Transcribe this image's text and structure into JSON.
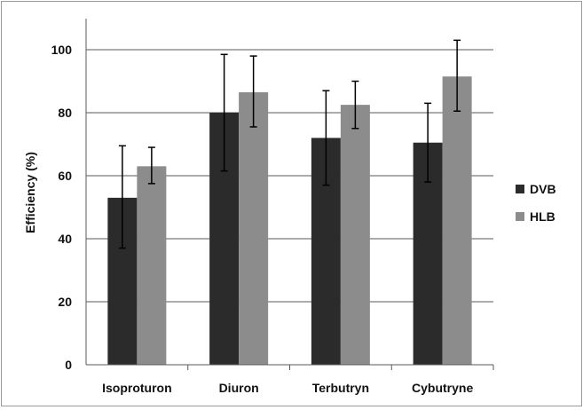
{
  "chart_data": {
    "type": "bar",
    "title": "",
    "xlabel": "",
    "ylabel": "Efficiency (%)",
    "categories": [
      "Isoproturon",
      "Diuron",
      "Terbutryn",
      "Cybutryne"
    ],
    "ylim": [
      0,
      100
    ],
    "yticks": [
      0,
      20,
      40,
      60,
      80,
      100
    ],
    "grid": true,
    "legend_position": "right",
    "series": [
      {
        "name": "DVB",
        "color": "#2b2b2b",
        "values": [
          53,
          80,
          72,
          70.5
        ],
        "error_low": [
          37,
          61.5,
          57,
          58
        ],
        "error_high": [
          69.5,
          98.5,
          87,
          83
        ]
      },
      {
        "name": "HLB",
        "color": "#8c8c8c",
        "values": [
          63,
          86.5,
          82.5,
          91.5
        ],
        "error_low": [
          57.5,
          75.5,
          75,
          80.5
        ],
        "error_high": [
          69,
          98,
          90,
          103
        ]
      }
    ]
  }
}
